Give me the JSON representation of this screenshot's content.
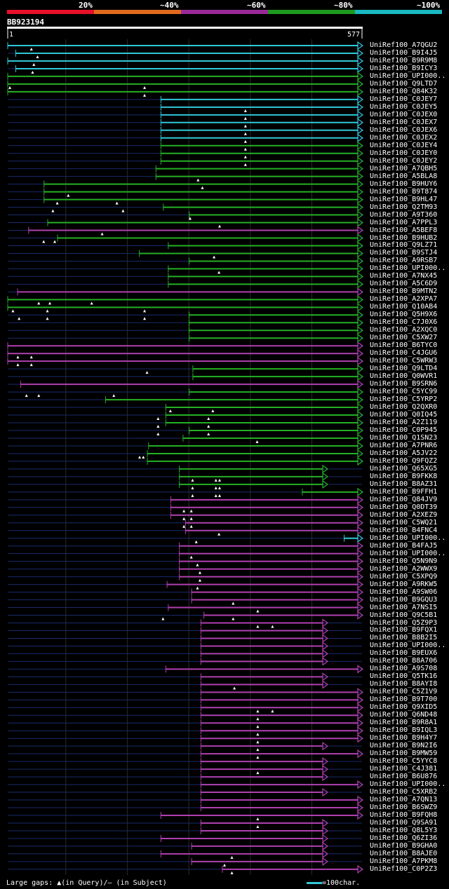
{
  "legend": {
    "labels": [
      "20%",
      "~40%",
      "~60%",
      "~80%",
      "~100%"
    ],
    "colors": [
      "#e8102a",
      "#e06a1c",
      "#9a2a98",
      "#1e9a1e",
      "#1ab8c0"
    ]
  },
  "query": {
    "name": "BB923194",
    "start": "1",
    "end": "577",
    "length": 577
  },
  "colors": {
    "blue": "#30c8d8",
    "green": "#24b024",
    "purple": "#b040b0",
    "line_dark": "#1a2a6a",
    "marker": "#ffffff"
  },
  "footer": {
    "gap_text": "Large gaps: ▲(in Query)/— (in Subject)",
    "scale_text": "=100char."
  },
  "hits": [
    {
      "label": "UniRef100_A7QGU2",
      "color": "blue",
      "start": 1,
      "end": 577,
      "m": [
        60
      ]
    },
    {
      "label": "UniRef100_B9I4J5",
      "color": "blue",
      "start": 14,
      "end": 577,
      "m": [
        70
      ]
    },
    {
      "label": "UniRef100_B9R9M8",
      "color": "blue",
      "start": 1,
      "end": 577,
      "m": [
        64
      ]
    },
    {
      "label": "UniRef100_B9ICY3",
      "color": "blue",
      "start": 14,
      "end": 577,
      "m": [
        62
      ]
    },
    {
      "label": "UniRef100_UPI000..",
      "color": "green",
      "start": 1,
      "end": 577,
      "m": []
    },
    {
      "label": "UniRef100_Q9LTD7",
      "color": "green",
      "start": 1,
      "end": 577,
      "m": [
        25,
        244
      ]
    },
    {
      "label": "UniRef100_Q84K32",
      "color": "green",
      "start": 1,
      "end": 577,
      "m": [
        244
      ]
    },
    {
      "label": "UniRef100_C0JEY7",
      "color": "blue",
      "start": 250,
      "end": 577,
      "m": []
    },
    {
      "label": "UniRef100_C0JEY5",
      "color": "blue",
      "start": 250,
      "end": 577,
      "m": [
        408
      ]
    },
    {
      "label": "UniRef100_C0JEX0",
      "color": "blue",
      "start": 250,
      "end": 577,
      "m": [
        408
      ]
    },
    {
      "label": "UniRef100_C0JEX7",
      "color": "blue",
      "start": 250,
      "end": 577,
      "m": [
        408
      ]
    },
    {
      "label": "UniRef100_C0JEX6",
      "color": "blue",
      "start": 250,
      "end": 577,
      "m": [
        408
      ]
    },
    {
      "label": "UniRef100_C0JEX2",
      "color": "blue",
      "start": 250,
      "end": 577,
      "m": [
        408
      ]
    },
    {
      "label": "UniRef100_C0JEY4",
      "color": "green",
      "start": 250,
      "end": 577,
      "m": [
        408
      ]
    },
    {
      "label": "UniRef100_C0JEY0",
      "color": "green",
      "start": 250,
      "end": 577,
      "m": [
        408
      ]
    },
    {
      "label": "UniRef100_C0JEY2",
      "color": "green",
      "start": 250,
      "end": 577,
      "m": [
        408
      ]
    },
    {
      "label": "UniRef100_A7QBH5",
      "color": "green",
      "start": 242,
      "end": 577,
      "m": []
    },
    {
      "label": "UniRef100_A5BLA8",
      "color": "green",
      "start": 242,
      "end": 577,
      "m": [
        331
      ]
    },
    {
      "label": "UniRef100_B9HUY6",
      "color": "green",
      "start": 60,
      "end": 577,
      "m": [
        338
      ]
    },
    {
      "label": "UniRef100_B9T874",
      "color": "green",
      "start": 60,
      "end": 577,
      "m": [
        120
      ]
    },
    {
      "label": "UniRef100_B9HL47",
      "color": "green",
      "start": 60,
      "end": 577,
      "m": [
        102,
        199
      ]
    },
    {
      "label": "UniRef100_Q2TM93",
      "color": "green",
      "start": 254,
      "end": 577,
      "m": [
        95,
        209
      ]
    },
    {
      "label": "UniRef100_A9T360",
      "color": "green",
      "start": 296,
      "end": 577,
      "m": [
        318
      ]
    },
    {
      "label": "UniRef100_A7PPL3",
      "color": "green",
      "start": 66,
      "end": 577,
      "m": [
        366
      ]
    },
    {
      "label": "UniRef100_A5BEF8",
      "color": "purple",
      "start": 35,
      "end": 577,
      "m": [
        175
      ]
    },
    {
      "label": "UniRef100_B9HUB2",
      "color": "green",
      "start": 82,
      "end": 577,
      "m": [
        80,
        98
      ]
    },
    {
      "label": "UniRef100_Q9LZ71",
      "color": "green",
      "start": 262,
      "end": 577,
      "m": []
    },
    {
      "label": "UniRef100_B9STJ4",
      "color": "green",
      "start": 215,
      "end": 577,
      "m": [
        357
      ]
    },
    {
      "label": "UniRef100_A9RSB7",
      "color": "green",
      "start": 296,
      "end": 577,
      "m": []
    },
    {
      "label": "UniRef100_UPI000..",
      "color": "green",
      "start": 262,
      "end": 577,
      "m": [
        365
      ]
    },
    {
      "label": "UniRef100_A7NX45",
      "color": "green",
      "start": 262,
      "end": 577,
      "m": []
    },
    {
      "label": "UniRef100_A5C6D9",
      "color": "green",
      "start": 262,
      "end": 577,
      "m": []
    },
    {
      "label": "UniRef100_B9MTN2",
      "color": "purple",
      "start": 17,
      "end": 577,
      "m": []
    },
    {
      "label": "UniRef100_A2XPA7",
      "color": "green",
      "start": 1,
      "end": 577,
      "m": [
        72,
        90,
        158
      ]
    },
    {
      "label": "UniRef100_Q10AB4",
      "color": "green",
      "start": 1,
      "end": 577,
      "m": [
        30,
        86,
        244
      ]
    },
    {
      "label": "UniRef100_Q5H9X6",
      "color": "green",
      "start": 296,
      "end": 577,
      "m": [
        40,
        86,
        244
      ]
    },
    {
      "label": "UniRef100_C7J0X6",
      "color": "green",
      "start": 296,
      "end": 577,
      "m": []
    },
    {
      "label": "UniRef100_A2XQC0",
      "color": "green",
      "start": 296,
      "end": 577,
      "m": []
    },
    {
      "label": "UniRef100_C5XW27",
      "color": "green",
      "start": 296,
      "end": 577,
      "m": []
    },
    {
      "label": "UniRef100_B6TYC0",
      "color": "purple",
      "start": 1,
      "end": 577,
      "m": []
    },
    {
      "label": "UniRef100_C4JGU6",
      "color": "purple",
      "start": 1,
      "end": 577,
      "m": [
        38,
        60
      ]
    },
    {
      "label": "UniRef100_C5WRW3",
      "color": "purple",
      "start": 1,
      "end": 577,
      "m": [
        38,
        60
      ]
    },
    {
      "label": "UniRef100_Q9LTD4",
      "color": "green",
      "start": 302,
      "end": 577,
      "m": [
        248
      ]
    },
    {
      "label": "UniRef100_Q0WVR1",
      "color": "green",
      "start": 302,
      "end": 577,
      "m": []
    },
    {
      "label": "UniRef100_B9SRN6",
      "color": "purple",
      "start": 22,
      "end": 577,
      "m": []
    },
    {
      "label": "UniRef100_C5YC99",
      "color": "green",
      "start": 296,
      "end": 577,
      "m": [
        52,
        72,
        194
      ]
    },
    {
      "label": "UniRef100_C5YRP2",
      "color": "green",
      "start": 160,
      "end": 577,
      "m": []
    },
    {
      "label": "UniRef100_Q2QXR0",
      "color": "green",
      "start": 258,
      "end": 577,
      "m": [
        286,
        355
      ]
    },
    {
      "label": "UniRef100_Q0IQ45",
      "color": "green",
      "start": 258,
      "end": 577,
      "m": [
        266,
        348
      ]
    },
    {
      "label": "UniRef100_A2Z119",
      "color": "green",
      "start": 258,
      "end": 577,
      "m": [
        266,
        348
      ]
    },
    {
      "label": "UniRef100_C0P945",
      "color": "green",
      "start": 296,
      "end": 577,
      "m": [
        266,
        348
      ]
    },
    {
      "label": "UniRef100_Q1SN23",
      "color": "green",
      "start": 286,
      "end": 577,
      "m": [
        427
      ]
    },
    {
      "label": "UniRef100_A7PNR6",
      "color": "green",
      "start": 230,
      "end": 577,
      "m": []
    },
    {
      "label": "UniRef100_A5JV22",
      "color": "green",
      "start": 228,
      "end": 577,
      "m": [
        236,
        242
      ]
    },
    {
      "label": "UniRef100_Q9FQZ2",
      "color": "green",
      "start": 228,
      "end": 577,
      "m": []
    },
    {
      "label": "UniRef100_Q65XG5",
      "color": "green",
      "start": 280,
      "end": 520,
      "m": []
    },
    {
      "label": "UniRef100_B9FKK8",
      "color": "green",
      "start": 280,
      "end": 520,
      "m": [
        322,
        360,
        366
      ]
    },
    {
      "label": "UniRef100_B8AZ31",
      "color": "green",
      "start": 280,
      "end": 520,
      "m": [
        322,
        360,
        366
      ]
    },
    {
      "label": "UniRef100_B9FFH1",
      "color": "green",
      "start": 480,
      "end": 577,
      "m": [
        322,
        360,
        366
      ]
    },
    {
      "label": "UniRef100_Q84JV9",
      "color": "purple",
      "start": 266,
      "end": 577,
      "m": []
    },
    {
      "label": "UniRef100_Q0DT39",
      "color": "purple",
      "start": 266,
      "end": 577,
      "m": [
        308,
        320
      ]
    },
    {
      "label": "UniRef100_A2XEZ9",
      "color": "purple",
      "start": 266,
      "end": 577,
      "m": [
        308,
        320
      ]
    },
    {
      "label": "UniRef100_C5WQ21",
      "color": "purple",
      "start": 290,
      "end": 577,
      "m": [
        308,
        320
      ]
    },
    {
      "label": "UniRef100_B4FNC4",
      "color": "purple",
      "start": 290,
      "end": 577,
      "m": [
        365
      ]
    },
    {
      "label": "UniRef100_UPI000..",
      "color": "blue",
      "start": 548,
      "end": 577,
      "m": [
        328
      ]
    },
    {
      "label": "UniRef100_B4FAJ5",
      "color": "purple",
      "start": 280,
      "end": 577,
      "m": []
    },
    {
      "label": "UniRef100_UPI000..",
      "color": "purple",
      "start": 280,
      "end": 577,
      "m": [
        320
      ]
    },
    {
      "label": "UniRef100_Q5N9N9",
      "color": "purple",
      "start": 280,
      "end": 577,
      "m": [
        330
      ]
    },
    {
      "label": "UniRef100_A2WWX9",
      "color": "purple",
      "start": 280,
      "end": 577,
      "m": [
        334
      ]
    },
    {
      "label": "UniRef100_C5XPQ9",
      "color": "purple",
      "start": 280,
      "end": 577,
      "m": [
        334
      ]
    },
    {
      "label": "UniRef100_A9RKW5",
      "color": "purple",
      "start": 260,
      "end": 577,
      "m": [
        330
      ]
    },
    {
      "label": "UniRef100_A9SW06",
      "color": "purple",
      "start": 300,
      "end": 577,
      "m": []
    },
    {
      "label": "UniRef100_B9GQU3",
      "color": "purple",
      "start": 300,
      "end": 577,
      "m": [
        388
      ]
    },
    {
      "label": "UniRef100_A7NSI5",
      "color": "purple",
      "start": 262,
      "end": 577,
      "m": [
        428
      ]
    },
    {
      "label": "UniRef100_Q9C5B1",
      "color": "purple",
      "start": 320,
      "end": 577,
      "m": [
        274,
        388
      ]
    },
    {
      "label": "UniRef100_Q5Z9P3",
      "color": "purple",
      "start": 315,
      "end": 520,
      "m": [
        428,
        452
      ]
    },
    {
      "label": "UniRef100_B9FQX1",
      "color": "purple",
      "start": 315,
      "end": 520,
      "m": []
    },
    {
      "label": "UniRef100_B8B2I5",
      "color": "purple",
      "start": 315,
      "end": 520,
      "m": []
    },
    {
      "label": "UniRef100_UPI000..",
      "color": "purple",
      "start": 315,
      "end": 520,
      "m": []
    },
    {
      "label": "UniRef100_B9EUX6",
      "color": "purple",
      "start": 315,
      "end": 520,
      "m": []
    },
    {
      "label": "UniRef100_B8A706",
      "color": "purple",
      "start": 315,
      "end": 520,
      "m": []
    },
    {
      "label": "UniRef100_A9S708",
      "color": "purple",
      "start": 258,
      "end": 577,
      "m": []
    },
    {
      "label": "UniRef100_Q5TK16",
      "color": "purple",
      "start": 315,
      "end": 520,
      "m": []
    },
    {
      "label": "UniRef100_B8AYI8",
      "color": "purple",
      "start": 315,
      "end": 520,
      "m": [
        390
      ]
    },
    {
      "label": "UniRef100_C5Z1V9",
      "color": "purple",
      "start": 315,
      "end": 577,
      "m": []
    },
    {
      "label": "UniRef100_B9T700",
      "color": "purple",
      "start": 315,
      "end": 577,
      "m": []
    },
    {
      "label": "UniRef100_Q9XID5",
      "color": "purple",
      "start": 315,
      "end": 577,
      "m": [
        428,
        452
      ]
    },
    {
      "label": "UniRef100_Q6ND48",
      "color": "purple",
      "start": 315,
      "end": 577,
      "m": [
        428
      ]
    },
    {
      "label": "UniRef100_B9R8A1",
      "color": "purple",
      "start": 315,
      "end": 577,
      "m": [
        428
      ]
    },
    {
      "label": "UniRef100_B9IQL3",
      "color": "purple",
      "start": 315,
      "end": 577,
      "m": [
        428
      ]
    },
    {
      "label": "UniRef100_B9H4Y7",
      "color": "purple",
      "start": 315,
      "end": 577,
      "m": [
        428
      ]
    },
    {
      "label": "UniRef100_B9N2I6",
      "color": "purple",
      "start": 315,
      "end": 520,
      "m": [
        428
      ]
    },
    {
      "label": "UniRef100_B9MW59",
      "color": "purple",
      "start": 315,
      "end": 577,
      "m": [
        428
      ]
    },
    {
      "label": "UniRef100_C5YYC8",
      "color": "purple",
      "start": 315,
      "end": 520,
      "m": []
    },
    {
      "label": "UniRef100_C4J381",
      "color": "purple",
      "start": 315,
      "end": 520,
      "m": [
        428
      ]
    },
    {
      "label": "UniRef100_B6U876",
      "color": "purple",
      "start": 315,
      "end": 520,
      "m": []
    },
    {
      "label": "UniRef100_UPI000..",
      "color": "purple",
      "start": 315,
      "end": 577,
      "m": []
    },
    {
      "label": "UniRef100_C5XRB2",
      "color": "purple",
      "start": 315,
      "end": 520,
      "m": []
    },
    {
      "label": "UniRef100_A7QN13",
      "color": "purple",
      "start": 315,
      "end": 577,
      "m": []
    },
    {
      "label": "UniRef100_B6SWZ9",
      "color": "purple",
      "start": 315,
      "end": 577,
      "m": []
    },
    {
      "label": "UniRef100_B9FQH8",
      "color": "purple",
      "start": 250,
      "end": 577,
      "m": [
        428
      ]
    },
    {
      "label": "UniRef100_Q9SA91",
      "color": "purple",
      "start": 315,
      "end": 520,
      "m": [
        428
      ]
    },
    {
      "label": "UniRef100_Q8L5Y3",
      "color": "purple",
      "start": 315,
      "end": 520,
      "m": []
    },
    {
      "label": "UniRef100_Q6ZI36",
      "color": "purple",
      "start": 250,
      "end": 520,
      "m": []
    },
    {
      "label": "UniRef100_B9GHA0",
      "color": "purple",
      "start": 300,
      "end": 520,
      "m": []
    },
    {
      "label": "UniRef100_B8AJE0",
      "color": "purple",
      "start": 250,
      "end": 520,
      "m": [
        386
      ]
    },
    {
      "label": "UniRef100_A7PKM8",
      "color": "purple",
      "start": 300,
      "end": 520,
      "m": [
        374
      ]
    },
    {
      "label": "UniRef100_C0P2Z3",
      "color": "purple",
      "start": 350,
      "end": 577,
      "m": [
        386
      ]
    }
  ]
}
